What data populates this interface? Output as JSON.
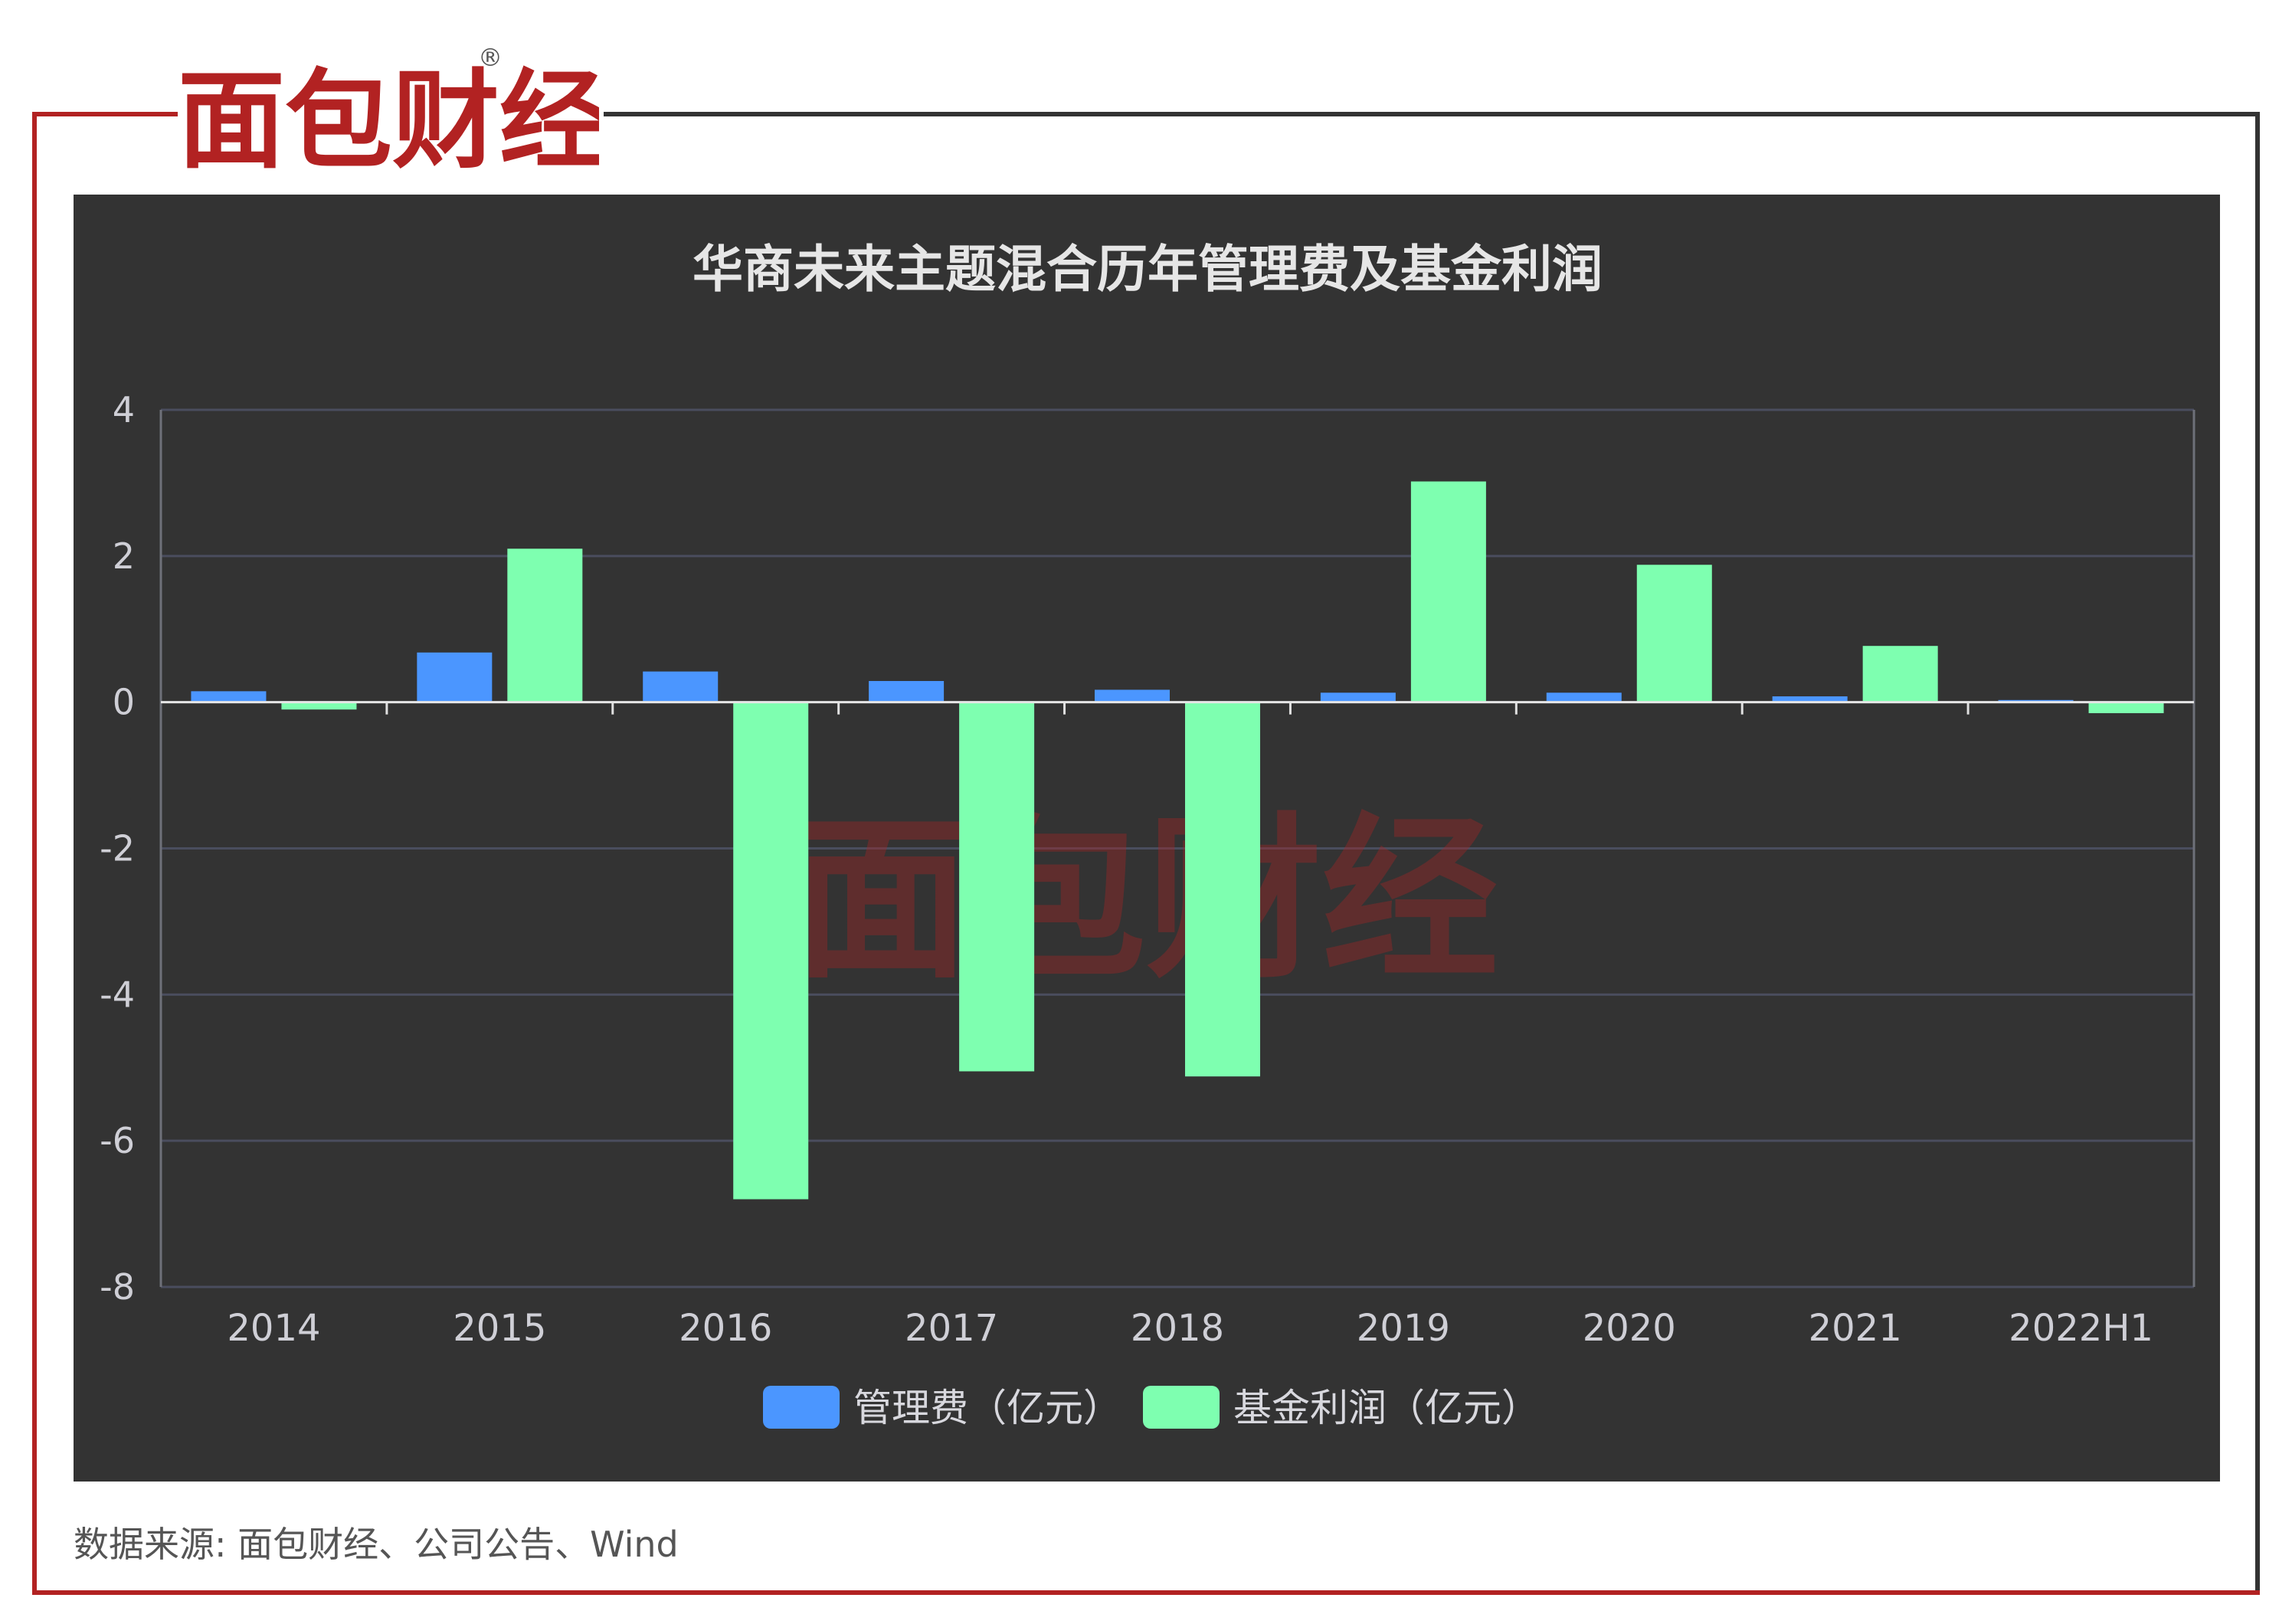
{
  "brand": {
    "logo_text": "面包财经",
    "logo_mark": "®"
  },
  "source_text": "数据来源: 面包财经、公司公告、Wind",
  "colors": {
    "background": "#333333",
    "mgmt_fee": "#4b96ff",
    "profit": "#7effb0",
    "brand_red": "#b22222"
  },
  "chart_data": {
    "type": "bar",
    "title": "华商未来主题混合历年管理费及基金利润",
    "categories": [
      "2014",
      "2015",
      "2016",
      "2017",
      "2018",
      "2019",
      "2020",
      "2021",
      "2022H1"
    ],
    "series": [
      {
        "name": "管理费（亿元）",
        "color": "#4b96ff",
        "values": [
          0.15,
          0.68,
          0.42,
          0.29,
          0.17,
          0.13,
          0.13,
          0.08,
          0.03
        ]
      },
      {
        "name": "基金利润（亿元）",
        "color": "#7effb0",
        "values": [
          -0.1,
          2.1,
          -6.8,
          -5.05,
          -5.12,
          3.02,
          1.88,
          0.77,
          -0.15
        ]
      }
    ],
    "ylim": [
      -8,
      4
    ],
    "yticks": [
      4,
      2,
      0,
      -2,
      -4,
      -6,
      -8
    ],
    "grid": true,
    "legend": "bottom"
  }
}
